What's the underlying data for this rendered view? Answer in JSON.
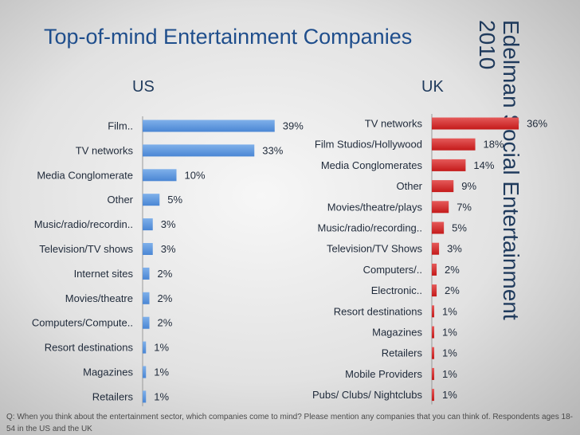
{
  "title": "Top-of-mind Entertainment Companies",
  "side_title": {
    "line1": "Edelman Social Entertainment",
    "line2": "2010"
  },
  "footnote": "Q: When you think about the entertainment sector, which companies come to mind? Please mention any companies that you can think of. Respondents ages 18-54 in the US  and the UK",
  "colors": {
    "us_bar": "#4a86d4",
    "uk_bar": "#c41a1a",
    "title": "#1f4e8c"
  },
  "chart_data": [
    {
      "type": "bar",
      "orientation": "horizontal",
      "title": "US",
      "categories": [
        "Film..",
        "TV networks",
        "Media Conglomerate",
        "Other",
        "Music/radio/recordin..",
        "Television/TV shows",
        "Internet sites",
        "Movies/theatre",
        "Computers/Compute..",
        "Resort destinations",
        "Magazines",
        "Retailers"
      ],
      "values": [
        39,
        33,
        10,
        5,
        3,
        3,
        2,
        2,
        2,
        1,
        1,
        1
      ],
      "labels": [
        "39%",
        "33%",
        "10%",
        "5%",
        "3%",
        "3%",
        "2%",
        "2%",
        "2%",
        "1%",
        "1%",
        "1%"
      ],
      "unit": "%",
      "xlim": [
        0,
        40
      ]
    },
    {
      "type": "bar",
      "orientation": "horizontal",
      "title": "UK",
      "categories": [
        "TV networks",
        "Film Studios/Hollywood",
        "Media Conglomerates",
        "Other",
        "Movies/theatre/plays",
        "Music/radio/recording..",
        "Television/TV Shows",
        "Computers/..",
        "Electronic..",
        "Resort destinations",
        "Magazines",
        "Retailers",
        "Mobile Providers",
        "Pubs/ Clubs/ Nightclubs"
      ],
      "values": [
        36,
        18,
        14,
        9,
        7,
        5,
        3,
        2,
        2,
        1,
        1,
        1,
        1,
        1
      ],
      "labels": [
        "36%",
        "18%",
        "14%",
        "9%",
        "7%",
        "5%",
        "3%",
        "2%",
        "2%",
        "1%",
        "1%",
        "1%",
        "1%",
        "1%"
      ],
      "unit": "%",
      "xlim": [
        0,
        40
      ]
    }
  ]
}
